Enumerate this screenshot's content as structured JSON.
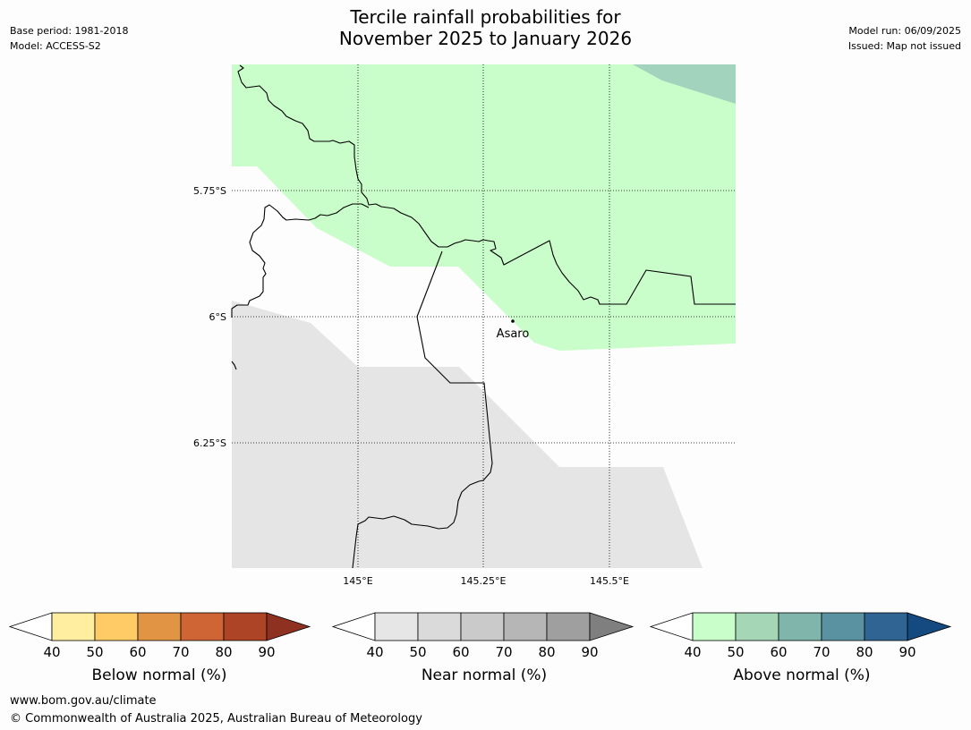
{
  "header": {
    "title_line1": "Tercile rainfall probabilities for",
    "title_line2": "November 2025 to January 2026",
    "base_period": "Base period: 1981-2018",
    "model": "Model: ACCESS-S2",
    "model_run": "Model run: 06/09/2025",
    "issued": "Issued: Map not issued"
  },
  "map": {
    "lat_labels": [
      "5.75°S",
      "6°S",
      "6.25°S"
    ],
    "lon_labels": [
      "145°E",
      "145.25°E",
      "145.5°E"
    ],
    "place": {
      "name": "Asaro"
    },
    "shading_colors": {
      "above_50": "#c9fdca",
      "above_60": "#a1d3bd",
      "near_normal": "#e5e5e5",
      "background": "#fdfdfd"
    }
  },
  "legends": [
    {
      "label": "Below normal (%)",
      "ticks": [
        "40",
        "50",
        "60",
        "70",
        "80",
        "90"
      ],
      "colors": [
        "#ffeea0",
        "#fecb66",
        "#e29445",
        "#cf6534",
        "#ad4426",
        "#8f3121"
      ]
    },
    {
      "label": "Near normal (%)",
      "ticks": [
        "40",
        "50",
        "60",
        "70",
        "80",
        "90"
      ],
      "colors": [
        "#e6e6e6",
        "#dadada",
        "#cacaca",
        "#b6b6b6",
        "#9f9f9f",
        "#7f7f7f"
      ]
    },
    {
      "label": "Above normal (%)",
      "ticks": [
        "40",
        "50",
        "60",
        "70",
        "80",
        "90"
      ],
      "colors": [
        "#c9fdca",
        "#a5d7b7",
        "#7fb5ab",
        "#5b92a1",
        "#2f6493",
        "#154a80"
      ]
    }
  ],
  "footer": {
    "url": "www.bom.gov.au/climate",
    "copyright": "© Commonwealth of Australia 2025, Australian Bureau of Meteorology"
  }
}
